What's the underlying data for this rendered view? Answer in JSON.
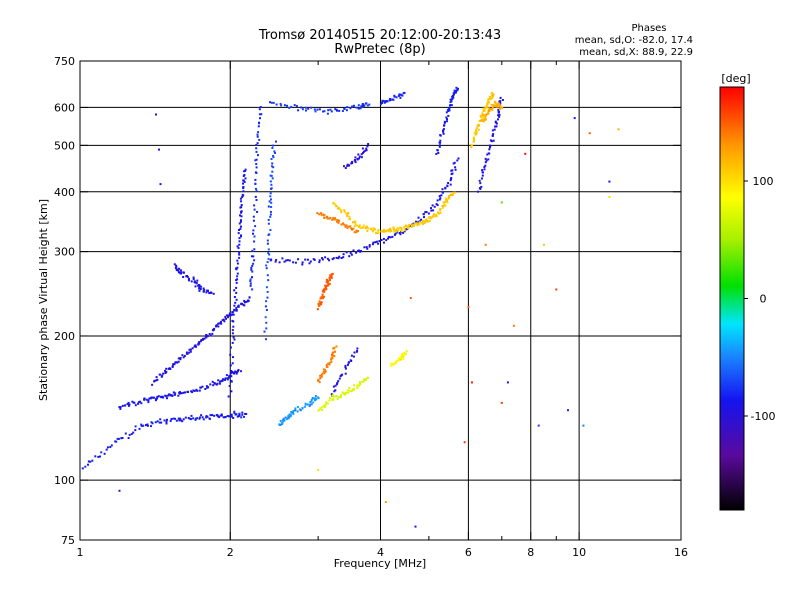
{
  "chart_data": {
    "type": "scatter",
    "title": "Tromsø 20140515 20:12:00-20:13:43",
    "subtitle": "RwPretec (8p)",
    "xlabel": "Frequency [MHz]",
    "ylabel": "Stationary phase Virtual Height [km]",
    "x_scale": "log",
    "y_scale": "log",
    "xlim": [
      1,
      16
    ],
    "ylim": [
      75,
      750
    ],
    "x_ticks": [
      1,
      2,
      4,
      6,
      8,
      10,
      16
    ],
    "x_tick_labels": [
      "1",
      "2",
      "4",
      "6",
      "8",
      "10",
      "16"
    ],
    "x_grid_lines": [
      2,
      4,
      6,
      8,
      10
    ],
    "x_minor_ticks": [
      3,
      5,
      7,
      9
    ],
    "y_ticks": [
      75,
      100,
      200,
      300,
      400,
      500,
      600,
      750
    ],
    "y_tick_labels": [
      "75",
      "100",
      "200",
      "300",
      "400",
      "500",
      "600",
      "750"
    ],
    "grid": true,
    "phases": {
      "heading": "Phases",
      "line1": "mean, sd,O: -82.0, 17.4",
      "line2": "mean, sd,X:  88.9, 22.9"
    },
    "colorbar": {
      "label": "[deg]",
      "range": [
        -180,
        180
      ],
      "ticks": [
        100,
        0,
        -100
      ],
      "tick_labels": [
        "100",
        "0",
        "-100"
      ],
      "placement": "right"
    },
    "series": [
      {
        "segments": [
          {
            "f": [
              1.0,
              1.15,
              1.3,
              1.45,
              1.6,
              1.75,
              1.9,
              2.05,
              2.15
            ],
            "h": [
              105,
              118,
              128,
              133,
              134,
              135,
              136,
              137,
              137
            ],
            "phase": -85
          },
          {
            "f": [
              1.2,
              1.3,
              1.4,
              1.5,
              1.6,
              1.75,
              1.9,
              2.0,
              2.1
            ],
            "h": [
              142,
              145,
              148,
              150,
              152,
              155,
              160,
              165,
              170
            ],
            "phase": -90
          },
          {
            "f": [
              1.4,
              1.5,
              1.6,
              1.7,
              1.8,
              1.9,
              2.0,
              2.1,
              2.2
            ],
            "h": [
              160,
              170,
              180,
              190,
              200,
              210,
              222,
              232,
              240
            ],
            "phase": -95
          },
          {
            "f": [
              1.55,
              1.6,
              1.7,
              1.75,
              1.85
            ],
            "h": [
              280,
              270,
              260,
              250,
              245
            ],
            "phase": -92
          },
          {
            "f": [
              2.0,
              2.02,
              2.05,
              2.08,
              2.1,
              2.12,
              2.14
            ],
            "h": [
              150,
              200,
              250,
              300,
              350,
              400,
              450
            ],
            "phase": -88
          },
          {
            "f": [
              2.2,
              2.22,
              2.25,
              2.27,
              2.3
            ],
            "h": [
              250,
              300,
              400,
              500,
              610
            ],
            "phase": -80
          },
          {
            "f": [
              2.35,
              2.38,
              2.4,
              2.42,
              2.45
            ],
            "h": [
              200,
              280,
              360,
              430,
              510
            ],
            "phase": -70
          },
          {
            "f": [
              2.5,
              2.6,
              2.7,
              2.9,
              3.0
            ],
            "h": [
              130,
              135,
              140,
              145,
              150
            ],
            "phase": -45
          },
          {
            "f": [
              2.4,
              2.8,
              3.2,
              3.6,
              4.0,
              4.4,
              4.8,
              5.2,
              5.5,
              5.7
            ],
            "h": [
              288,
              285,
              290,
              300,
              315,
              330,
              350,
              380,
              420,
              470
            ],
            "phase": -92
          },
          {
            "f": [
              5.2,
              5.35,
              5.5,
              5.6,
              5.7
            ],
            "h": [
              480,
              540,
              600,
              640,
              660
            ],
            "phase": -85
          },
          {
            "f": [
              2.4,
              2.8,
              3.2,
              3.6,
              3.8
            ],
            "h": [
              610,
              595,
              590,
              600,
              610
            ],
            "phase": -75
          },
          {
            "f": [
              4.0,
              4.2,
              4.5
            ],
            "h": [
              615,
              625,
              640
            ],
            "phase": -80
          },
          {
            "f": [
              3.2,
              3.4,
              3.6
            ],
            "h": [
              150,
              170,
              190
            ],
            "phase": -95
          },
          {
            "f": [
              6.3,
              6.5,
              6.7,
              6.9,
              7.0
            ],
            "h": [
              400,
              460,
              520,
              580,
              630
            ],
            "phase": -90
          },
          {
            "f": [
              3.4,
              3.6,
              3.8
            ],
            "h": [
              450,
              470,
              500
            ],
            "phase": -100
          }
        ],
        "scatter": [
          {
            "f": 1.42,
            "h": 580,
            "phase": -90
          },
          {
            "f": 1.44,
            "h": 490,
            "phase": -95
          },
          {
            "f": 1.45,
            "h": 415,
            "phase": -88
          },
          {
            "f": 11.5,
            "h": 420,
            "phase": -90
          },
          {
            "f": 9.8,
            "h": 570,
            "phase": -85
          },
          {
            "f": 9.5,
            "h": 140,
            "phase": -80
          },
          {
            "f": 7.2,
            "h": 160,
            "phase": -90
          },
          {
            "f": 1.2,
            "h": 95,
            "phase": -120
          },
          {
            "f": 8.3,
            "h": 130,
            "phase": -75
          },
          {
            "f": 4.7,
            "h": 80,
            "phase": -90
          },
          {
            "f": 10.2,
            "h": 130,
            "phase": -50
          }
        ]
      },
      {
        "segments": [
          {
            "f": [
              3.0,
              3.05,
              3.1,
              3.15,
              3.2
            ],
            "h": [
              230,
              240,
              250,
              260,
              270
            ],
            "phase": 150
          },
          {
            "f": [
              3.0,
              3.1,
              3.2,
              3.25
            ],
            "h": [
              160,
              170,
              180,
              190
            ],
            "phase": 140
          },
          {
            "f": [
              3.2,
              3.4,
              3.6,
              3.8,
              4.0,
              4.2,
              4.4,
              4.6,
              4.8,
              5.0,
              5.2,
              5.4,
              5.6
            ],
            "h": [
              380,
              360,
              340,
              335,
              330,
              332,
              335,
              340,
              345,
              350,
              360,
              380,
              400
            ],
            "phase": 110
          },
          {
            "f": [
              3.0,
              3.2,
              3.4,
              3.6
            ],
            "h": [
              360,
              350,
              340,
              330
            ],
            "phase": 140
          },
          {
            "f": [
              3.0,
              3.2,
              3.4,
              3.6,
              3.8
            ],
            "h": [
              140,
              148,
              152,
              158,
              165
            ],
            "phase": 70
          },
          {
            "f": [
              6.1,
              6.25,
              6.4,
              6.6,
              6.75
            ],
            "h": [
              500,
              540,
              580,
              620,
              640
            ],
            "phase": 110
          },
          {
            "f": [
              6.4,
              6.6,
              6.8,
              7.0
            ],
            "h": [
              560,
              590,
              610,
              600
            ],
            "phase": 120
          },
          {
            "f": [
              4.2,
              4.4,
              4.5
            ],
            "h": [
              175,
              180,
              185
            ],
            "phase": 90
          }
        ],
        "scatter": [
          {
            "f": 6.0,
            "h": 230,
            "phase": 150
          },
          {
            "f": 6.5,
            "h": 310,
            "phase": 140
          },
          {
            "f": 7.0,
            "h": 145,
            "phase": 160
          },
          {
            "f": 7.8,
            "h": 480,
            "phase": 180
          },
          {
            "f": 8.5,
            "h": 310,
            "phase": 110
          },
          {
            "f": 10.5,
            "h": 530,
            "phase": 150
          },
          {
            "f": 12.0,
            "h": 540,
            "phase": 120
          },
          {
            "f": 11.5,
            "h": 390,
            "phase": 100
          },
          {
            "f": 6.1,
            "h": 160,
            "phase": 170
          },
          {
            "f": 4.6,
            "h": 240,
            "phase": 150
          },
          {
            "f": 9.0,
            "h": 250,
            "phase": 160
          },
          {
            "f": 7.4,
            "h": 210,
            "phase": 140
          },
          {
            "f": 5.9,
            "h": 120,
            "phase": 160
          },
          {
            "f": 4.1,
            "h": 90,
            "phase": 130
          },
          {
            "f": 3.0,
            "h": 105,
            "phase": 100
          },
          {
            "f": 7.0,
            "h": 380,
            "phase": 30
          }
        ]
      }
    ]
  }
}
